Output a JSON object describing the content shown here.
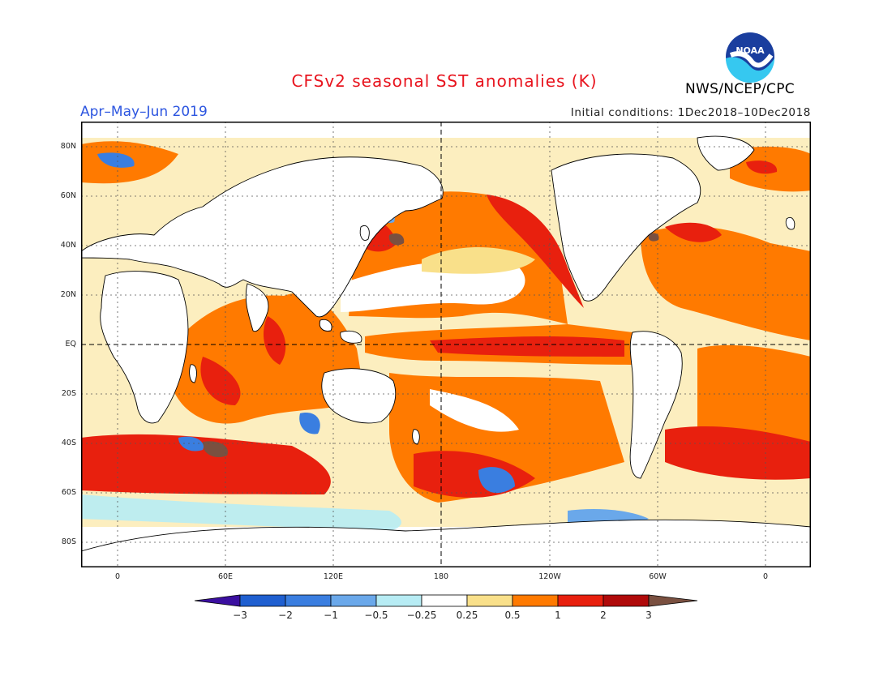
{
  "header": {
    "title": "CFSv2 seasonal SST anomalies (K)",
    "agency": "NWS/NCEP/CPC",
    "logo_text": "NOAA",
    "period": "Apr–May–Jun 2019",
    "initial_conditions": "Initial conditions: 1Dec2018–10Dec2018"
  },
  "map": {
    "lat_labels": [
      "80N",
      "60N",
      "40N",
      "20N",
      "EQ",
      "20S",
      "40S",
      "60S",
      "80S"
    ],
    "lon_labels": [
      "0",
      "60E",
      "120E",
      "180",
      "120W",
      "60W",
      "0"
    ]
  },
  "colorbar": {
    "labels": [
      "−3",
      "−2",
      "−1",
      "−0.5",
      "−0.25",
      "0.25",
      "0.5",
      "1",
      "2",
      "3"
    ],
    "colors": [
      "#3b0fa0",
      "#1f5fd0",
      "#3a7ee0",
      "#6aa8ea",
      "#b7ecf4",
      "#ffffff",
      "#f9e08a",
      "#ff7a00",
      "#e8200e",
      "#b00a0a",
      "#7a5040"
    ]
  }
}
